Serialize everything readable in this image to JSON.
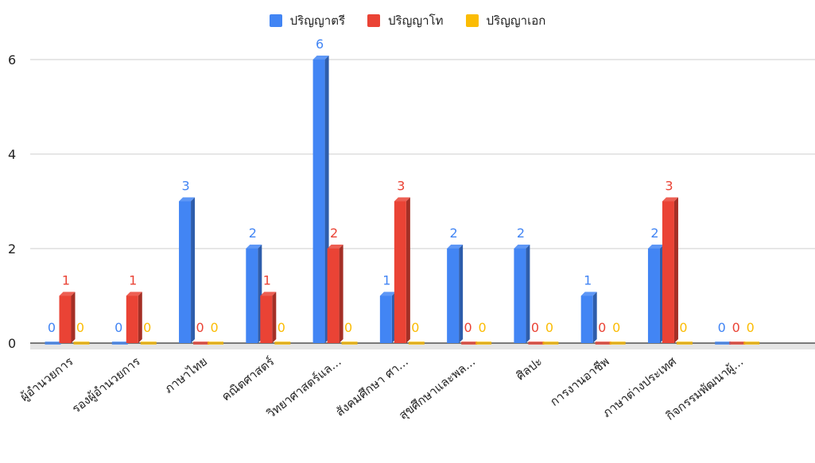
{
  "chart_data": {
    "type": "bar",
    "title": "",
    "xlabel": "",
    "ylabel": "",
    "ylim": [
      0,
      6
    ],
    "yticks": [
      0,
      2,
      4,
      6
    ],
    "grid": true,
    "legend_position": "top-center",
    "categories": [
      "ผู้อำนวยการ",
      "รองผู้อำนวยการ",
      "ภาษาไทย",
      "คณิตศาสตร์",
      "วิทยาศาสตร์แล...",
      "สังคมศึกษา ศา...",
      "สุขศึกษาและพล...",
      "ศิลปะ",
      "การงานอาชีพ",
      "ภาษาต่างประเทศ",
      "กิจกรรมพัฒนาผู้..."
    ],
    "series": [
      {
        "name": "ปริญญาตรี",
        "color": "#4285f4",
        "values": [
          0,
          0,
          3,
          2,
          6,
          1,
          2,
          2,
          1,
          2,
          0
        ]
      },
      {
        "name": "ปริญญาโท",
        "color": "#ea4335",
        "values": [
          1,
          1,
          0,
          1,
          2,
          3,
          0,
          0,
          0,
          3,
          0
        ]
      },
      {
        "name": "ปริญญาเอก",
        "color": "#fbbc04",
        "values": [
          0,
          0,
          0,
          0,
          0,
          0,
          0,
          0,
          0,
          0,
          0
        ]
      }
    ]
  }
}
